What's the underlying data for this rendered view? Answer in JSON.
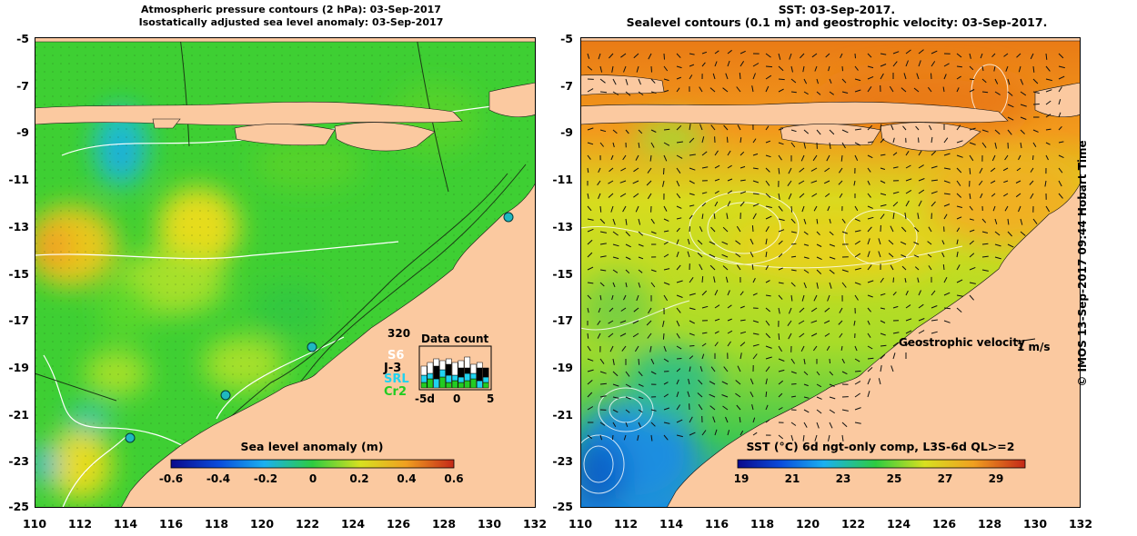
{
  "left_panel": {
    "title_line1": "Atmospheric pressure contours (2 hPa): 03-Sep-2017",
    "title_line2": "Isostatically adjusted sea level anomaly: 03-Sep-2017",
    "colorbar": {
      "label": "Sea level anomaly (m)",
      "ticks": [
        "-0.6",
        "-0.4",
        "-0.2",
        "0",
        "0.2",
        "0.4",
        "0.6"
      ]
    },
    "data_count": {
      "title": "Data count",
      "max_label": "320",
      "legend": [
        {
          "label": "S6",
          "color": "#ffffff"
        },
        {
          "label": "J-3",
          "color": "#000000"
        },
        {
          "label": "SRL",
          "color": "#1fd3f0"
        },
        {
          "label": "Cr2",
          "color": "#22cc22"
        }
      ],
      "axis_ticks": [
        "-5d",
        "0",
        "5"
      ]
    }
  },
  "right_panel": {
    "title_line1": "SST: 03-Sep-2017.",
    "title_line2": "Sealevel contours (0.1 m) and geostrophic velocity: 03-Sep-2017.",
    "velocity_label": "Geostrophic velocity",
    "velocity_scale": "1 m/s",
    "colorbar": {
      "label": "SST (°C) 6d ngt-only comp, L3S-6d QL>=2",
      "ticks": [
        "19",
        "21",
        "23",
        "25",
        "27",
        "29"
      ]
    }
  },
  "axes": {
    "y_ticks": [
      "-5",
      "-7",
      "-9",
      "-11",
      "-13",
      "-15",
      "-17",
      "-19",
      "-21",
      "-23",
      "-25"
    ],
    "x_ticks": [
      "110",
      "112",
      "114",
      "116",
      "118",
      "120",
      "122",
      "124",
      "126",
      "128",
      "130",
      "132"
    ]
  },
  "credit": "© IMOS 13-Sep-2017 09:44 Hobart Time",
  "colors": {
    "land": "#fbc9a0",
    "ocean_green": "#3ecf33",
    "sst_orange": "#f29a1c"
  }
}
